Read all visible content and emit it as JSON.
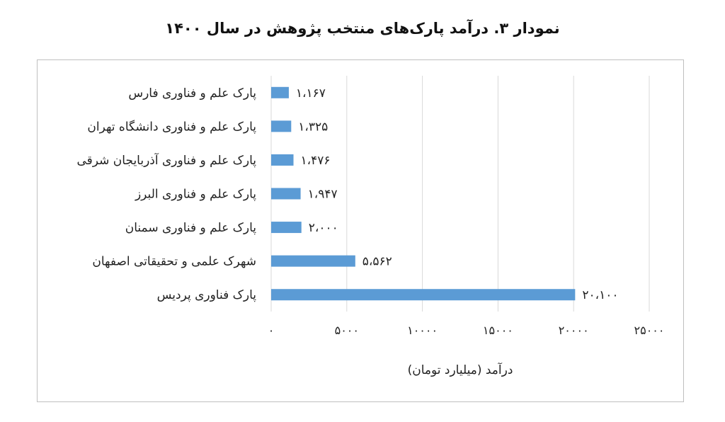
{
  "chart_data": {
    "type": "bar",
    "orientation": "horizontal",
    "title": "نمودار ۳. درآمد پارک‌های منتخب پژوهش در سال ۱۴۰۰",
    "xlabel": "درآمد (میلیارد تومان)",
    "ylabel": "",
    "xlim": [
      0,
      25000
    ],
    "grid": true,
    "categories": [
      "پارک علم و فناوری فارس",
      "پارک علم و فناوری دانشگاه تهران",
      "پارک علم و فناوری آذربایجان شرقی",
      "پارک علم و فناوری البرز",
      "پارک علم و فناوری  سمنان",
      "شهرک علمی و تحقیقاتی اصفهان",
      "پارک فناوری پردیس"
    ],
    "values": [
      1167,
      1325,
      1476,
      1947,
      2000,
      5562,
      20100
    ],
    "data_labels": [
      "۱،۱۶۷",
      "۱،۳۲۵",
      "۱،۴۷۶",
      "۱،۹۴۷",
      "۲،۰۰۰",
      "۵،۵۶۲",
      "۲۰،۱۰۰"
    ],
    "x_ticks": [
      0,
      5000,
      10000,
      15000,
      20000,
      25000
    ],
    "x_tick_labels": [
      "۰",
      "۵۰۰۰",
      "۱۰۰۰۰",
      "۱۵۰۰۰",
      "۲۰۰۰۰",
      "۲۵۰۰۰"
    ],
    "bar_color": "#5B9BD5",
    "grid_color": "#d9d9d9"
  }
}
